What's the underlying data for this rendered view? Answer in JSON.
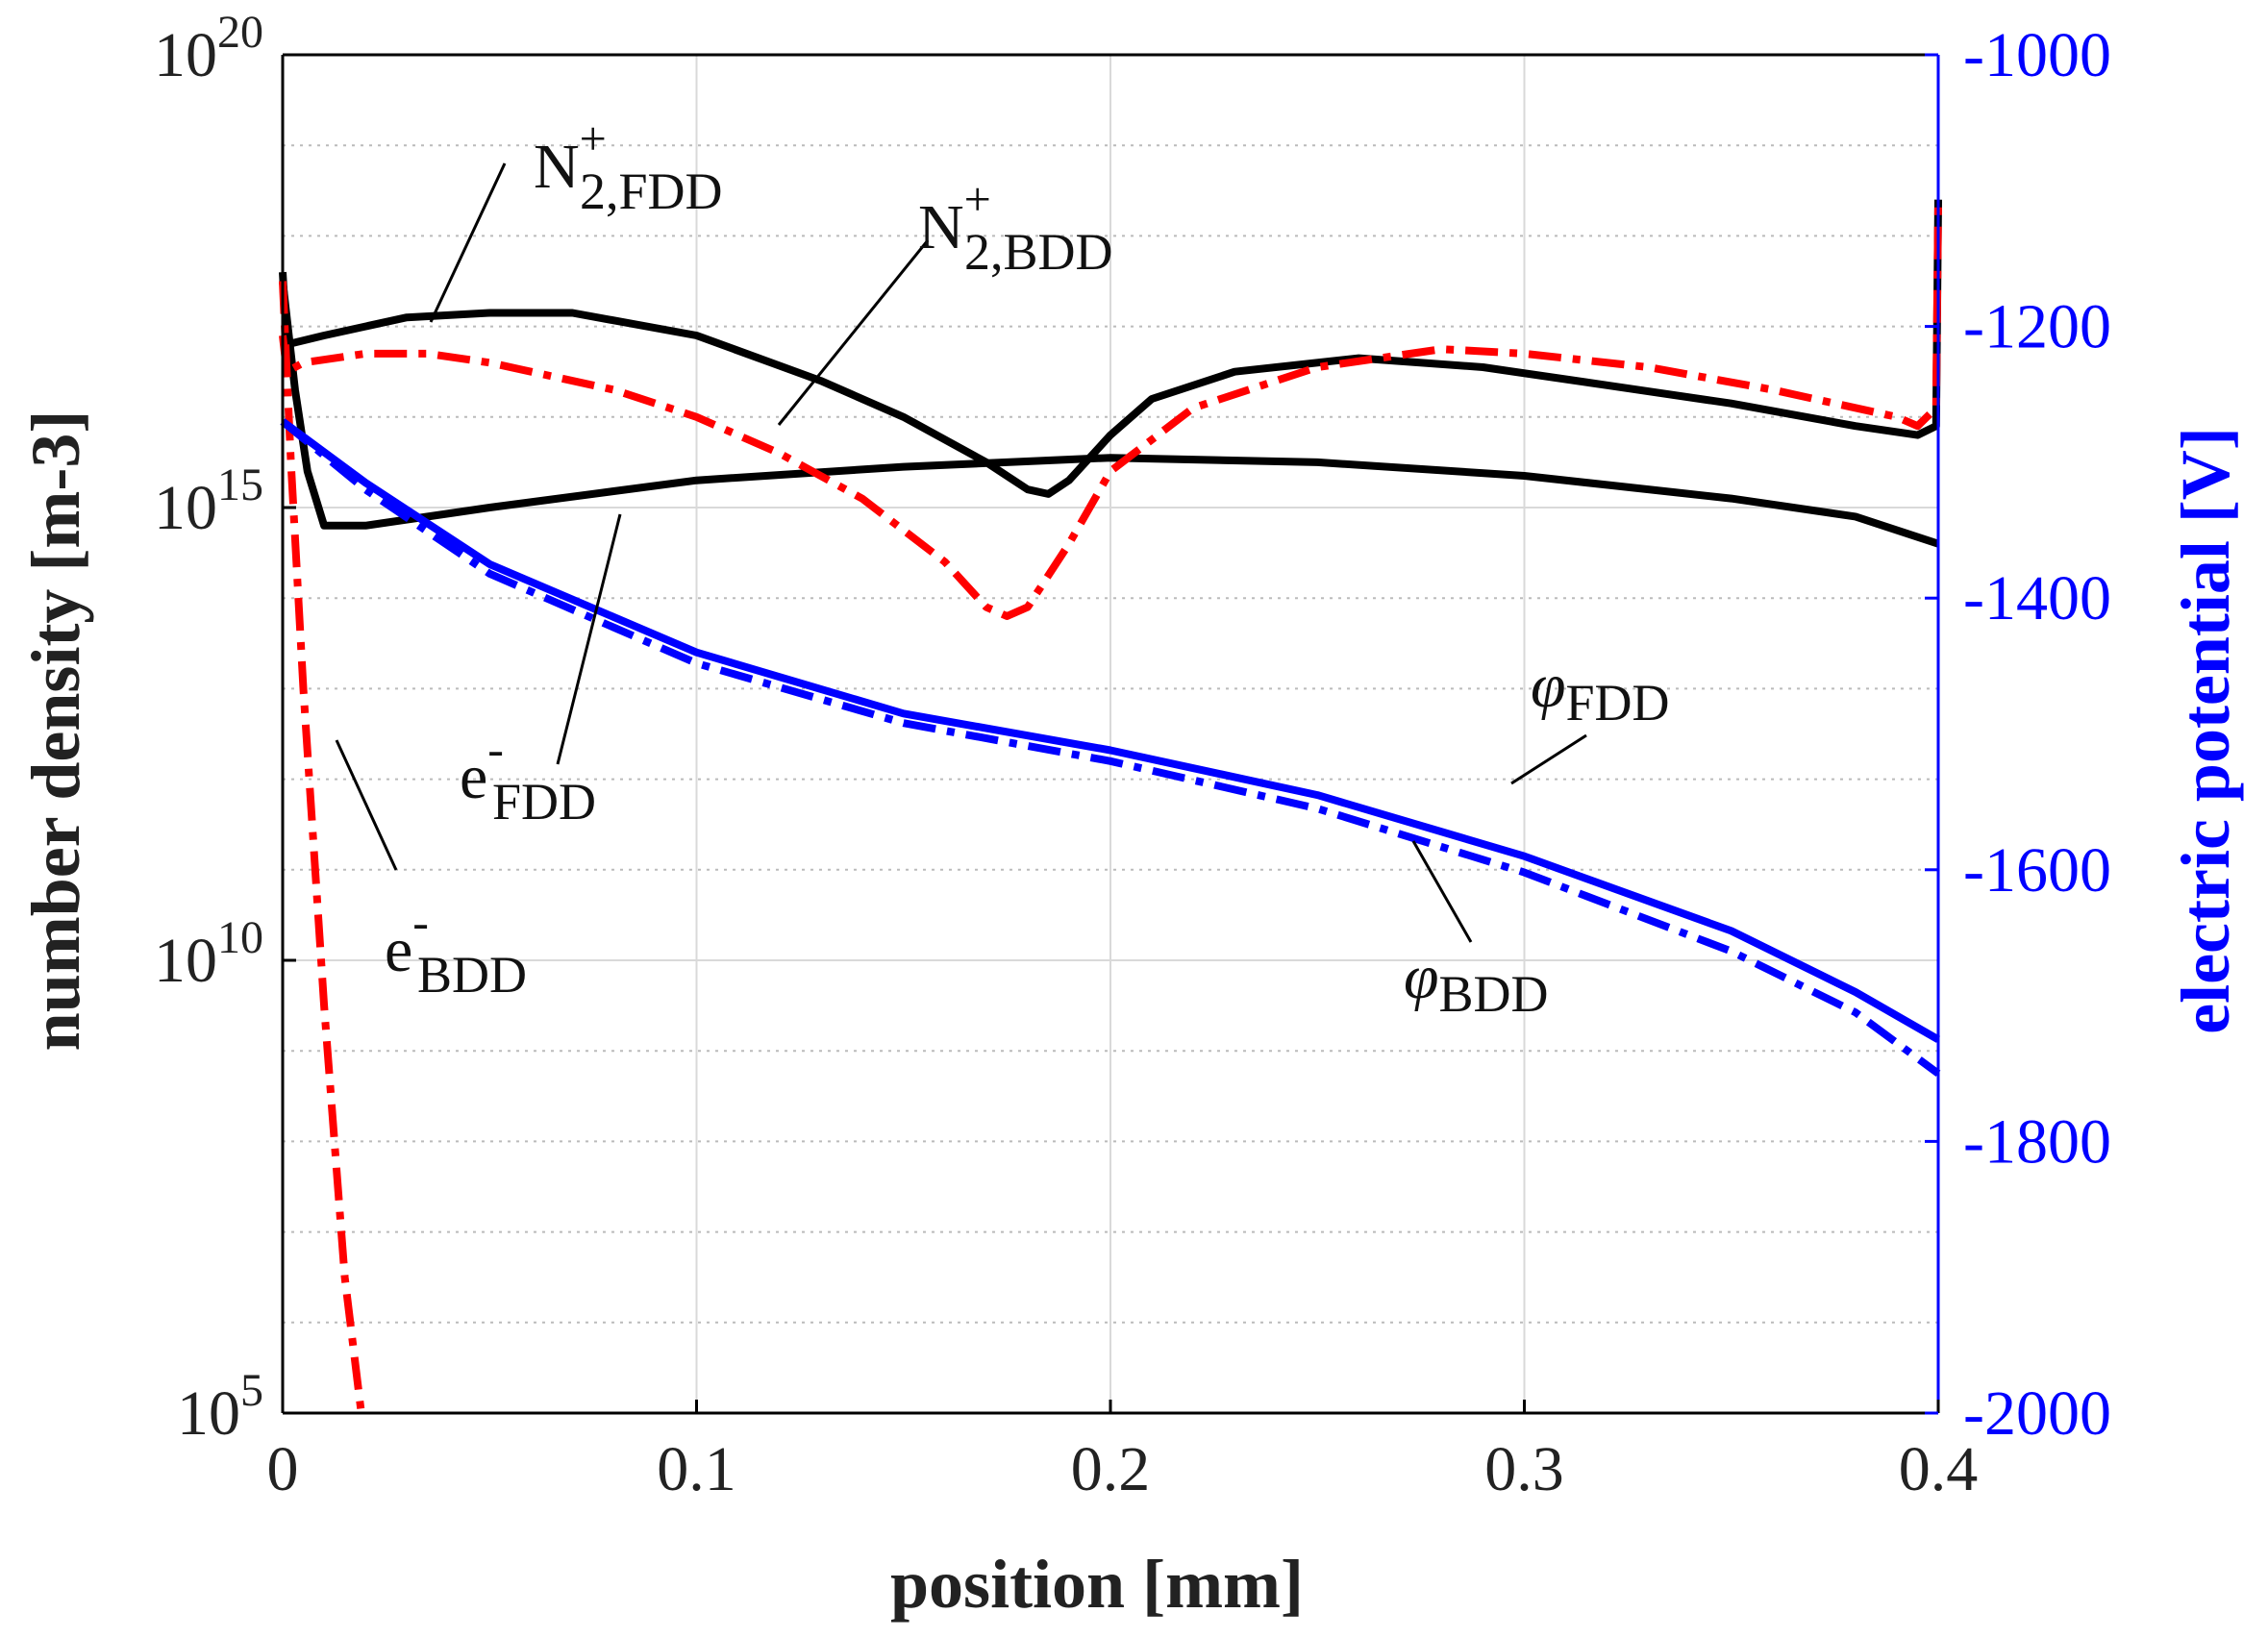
{
  "chart_data": {
    "type": "line",
    "title": "",
    "xlabel": "position [mm]",
    "ylabel_left": "number density [m-3]",
    "ylabel_right": "electric potential [V]",
    "xlim": [
      0,
      0.4
    ],
    "ylim_left_log10": [
      5,
      20
    ],
    "ylim_right": [
      -2000,
      -1000
    ],
    "grid": true,
    "x_ticks": [
      "0",
      "0.1",
      "0.2",
      "0.3",
      "0.4"
    ],
    "x_tick_values": [
      0,
      0.1,
      0.2,
      0.3,
      0.4
    ],
    "left_ticks": [
      {
        "base": "10",
        "exp": "5",
        "log10": 5
      },
      {
        "base": "10",
        "exp": "10",
        "log10": 10
      },
      {
        "base": "10",
        "exp": "15",
        "log10": 15
      },
      {
        "base": "10",
        "exp": "20",
        "log10": 20
      }
    ],
    "right_ticks": [
      "-1000",
      "-1200",
      "-1400",
      "-1600",
      "-1800",
      "-2000"
    ],
    "right_tick_values": [
      -1000,
      -1200,
      -1400,
      -1600,
      -1800,
      -2000
    ],
    "colors": {
      "black": "#000000",
      "red": "#ff0000",
      "blue": "#0000ff",
      "grid": "#d9d9d9",
      "right_axis": "#0000ff"
    },
    "series": [
      {
        "name": "N2+ FDD",
        "axis": "left",
        "color": "#000000",
        "style": "solid",
        "x": [
          0,
          0.001,
          0.01,
          0.03,
          0.05,
          0.07,
          0.1,
          0.13,
          0.15,
          0.17,
          0.18,
          0.185,
          0.19,
          0.2,
          0.21,
          0.23,
          0.26,
          0.29,
          0.32,
          0.35,
          0.38,
          0.395,
          0.3995,
          0.4
        ],
        "y": [
          17.6,
          16.8,
          16.9,
          17.1,
          17.15,
          17.15,
          16.9,
          16.4,
          16.0,
          15.5,
          15.2,
          15.15,
          15.3,
          15.8,
          16.2,
          16.5,
          16.65,
          16.55,
          16.35,
          16.15,
          15.9,
          15.8,
          15.9,
          18.4
        ]
      },
      {
        "name": "e- FDD",
        "axis": "left",
        "color": "#000000",
        "style": "solid",
        "x": [
          0,
          0.003,
          0.006,
          0.01,
          0.02,
          0.05,
          0.1,
          0.15,
          0.2,
          0.25,
          0.3,
          0.35,
          0.38,
          0.4
        ],
        "y": [
          17.5,
          16.3,
          15.4,
          14.8,
          14.8,
          15.0,
          15.3,
          15.45,
          15.55,
          15.5,
          15.35,
          15.1,
          14.9,
          14.6
        ]
      },
      {
        "name": "N2+ BDD",
        "axis": "left",
        "color": "#ff0000",
        "style": "dashdot",
        "x": [
          0,
          0.001,
          0.005,
          0.02,
          0.035,
          0.05,
          0.08,
          0.1,
          0.12,
          0.14,
          0.16,
          0.17,
          0.175,
          0.18,
          0.19,
          0.2,
          0.22,
          0.25,
          0.28,
          0.3,
          0.33,
          0.36,
          0.39,
          0.395,
          0.3995,
          0.4
        ],
        "y": [
          16.9,
          16.5,
          16.6,
          16.7,
          16.7,
          16.6,
          16.3,
          16.0,
          15.6,
          15.1,
          14.4,
          13.9,
          13.8,
          13.9,
          14.6,
          15.4,
          16.1,
          16.55,
          16.75,
          16.7,
          16.55,
          16.3,
          16.0,
          15.9,
          16.1,
          18.4
        ]
      },
      {
        "name": "e- BDD",
        "axis": "left",
        "color": "#ff0000",
        "style": "dashdot",
        "x": [
          0,
          0.002,
          0.005,
          0.01,
          0.015,
          0.019
        ],
        "y": [
          17.5,
          15.5,
          13.0,
          9.5,
          6.5,
          5.0
        ]
      },
      {
        "name": "phi FDD",
        "axis": "right",
        "color": "#0000ff",
        "style": "solid",
        "x": [
          0,
          0.02,
          0.05,
          0.1,
          0.15,
          0.2,
          0.25,
          0.3,
          0.35,
          0.38,
          0.4
        ],
        "y": [
          -1270,
          -1315,
          -1375,
          -1440,
          -1485,
          -1512,
          -1545,
          -1590,
          -1645,
          -1690,
          -1725
        ]
      },
      {
        "name": "phi BDD",
        "axis": "right",
        "color": "#0000ff",
        "style": "dashdot",
        "x": [
          0,
          0.02,
          0.05,
          0.1,
          0.15,
          0.2,
          0.25,
          0.3,
          0.35,
          0.38,
          0.4
        ],
        "y": [
          -1270,
          -1320,
          -1382,
          -1448,
          -1492,
          -1520,
          -1555,
          -1602,
          -1660,
          -1705,
          -1750
        ]
      }
    ],
    "annotations": [
      {
        "id": "n2-fdd",
        "base": "N",
        "sup": "+",
        "sub": "2,FDD"
      },
      {
        "id": "n2-bdd",
        "base": "N",
        "sup": "+",
        "sub": "2,BDD"
      },
      {
        "id": "e-fdd",
        "base": "e",
        "sup": "-",
        "sub": "FDD"
      },
      {
        "id": "e-bdd",
        "base": "e",
        "sup": "-",
        "sub": "BDD"
      },
      {
        "id": "phi-fdd",
        "base": "φ",
        "sub": "FDD"
      },
      {
        "id": "phi-bdd",
        "base": "φ",
        "sub": "BDD"
      }
    ]
  }
}
